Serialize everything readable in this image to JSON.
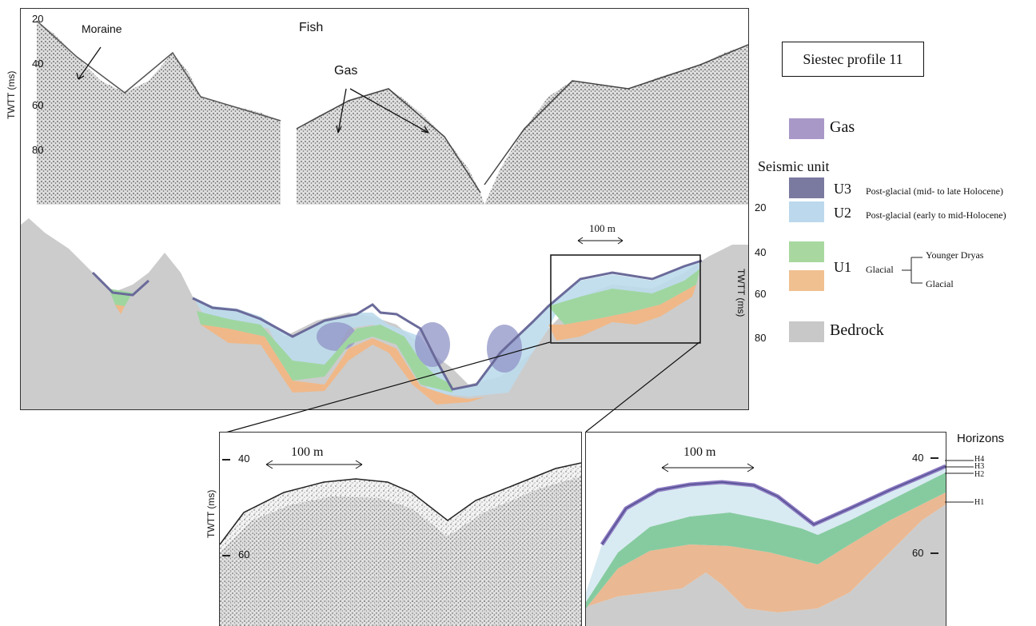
{
  "top_panel": {
    "axis_title": "TWTT (ms)",
    "ticks": [
      "20",
      "40",
      "60",
      "80"
    ],
    "annotations": {
      "moraine": "Moraine",
      "fish": "Fish",
      "gas": "Gas"
    }
  },
  "right_axis": {
    "axis_title": "TWTT (ms)",
    "ticks": [
      "20",
      "40",
      "60",
      "80"
    ]
  },
  "scale_bar": "100 m",
  "profile_title": "Siestec profile 11",
  "legend": {
    "gas": {
      "label": "Gas",
      "color": "#a898c8"
    },
    "seismic_unit_title": "Seismic unit",
    "u3": {
      "code": "U3",
      "desc": "Post-glacial (mid- to late Holocene)",
      "color": "#7a7aa0"
    },
    "u2": {
      "code": "U2",
      "desc": "Post-glacial (early to mid-Holocene)",
      "color": "#bcd8ec"
    },
    "u1": {
      "code": "U1",
      "desc": "Glacial",
      "younger_dryas": "Younger Dryas",
      "glacial": "Glacial",
      "color_green": "#a8d8a0",
      "color_orange": "#f0c090"
    },
    "bedrock": {
      "label": "Bedrock",
      "color": "#c8c8c8"
    }
  },
  "zoom_left": {
    "axis_title": "TWTT (ms)",
    "ticks": [
      "40",
      "60"
    ],
    "scale_bar": "100 m"
  },
  "zoom_right": {
    "horizons_title": "Horizons",
    "ticks": [
      "40",
      "60"
    ],
    "scale_bar": "100 m",
    "horizons": [
      "H4",
      "H3",
      "H2",
      "H1"
    ]
  }
}
